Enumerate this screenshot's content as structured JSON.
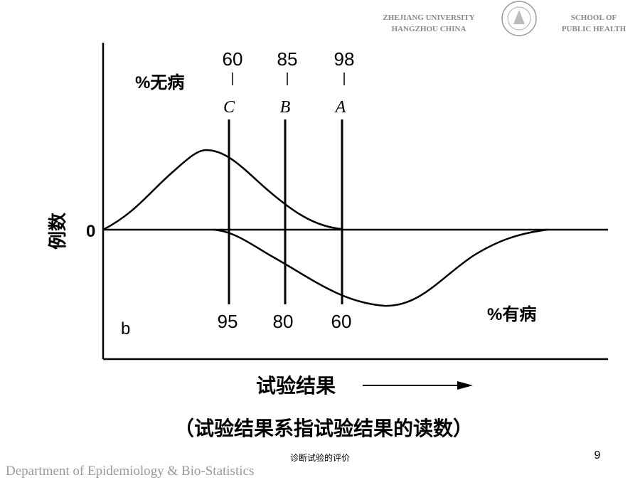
{
  "header": {
    "university": "ZHEJIANG UNIVERSITY",
    "city": "HANGZHOU CHINA",
    "school_line1": "SCHOOL OF",
    "school_line2": "PUBLIC HEALTH"
  },
  "figure": {
    "top_label": "%无病",
    "bottom_label": "%有病",
    "y_axis_label": "例数",
    "zero": "0",
    "panel": "b",
    "x_axis_label": "试验结果",
    "caption": "（试验结果系指试验结果的读数）",
    "cutoffs": [
      {
        "letter": "C",
        "specificity": "60",
        "sensitivity": "95"
      },
      {
        "letter": "B",
        "specificity": "85",
        "sensitivity": "80"
      },
      {
        "letter": "A",
        "specificity": "98",
        "sensitivity": "60"
      }
    ]
  },
  "footer": {
    "department": "Department of Epidemiology & Bio-Statistics",
    "page_title": "诊断试验的评价",
    "page_number": "9"
  }
}
